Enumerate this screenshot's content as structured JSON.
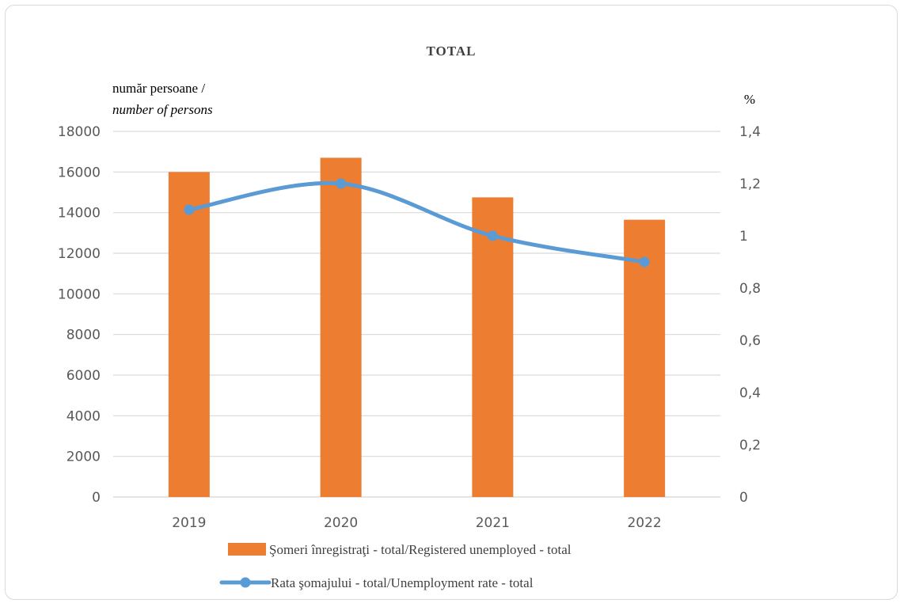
{
  "chart_data": {
    "type": "bar+line",
    "title": "TOTAL",
    "ylabel_left_line1": "număr persoane /",
    "ylabel_left_line2": "number of persons",
    "ylabel_right": "%",
    "categories": [
      "2019",
      "2020",
      "2021",
      "2022"
    ],
    "y_left_lim": [
      0,
      18000
    ],
    "y_left_ticks": [
      "0",
      "2000",
      "4000",
      "6000",
      "8000",
      "10000",
      "12000",
      "14000",
      "16000",
      "18000"
    ],
    "y_right_lim": [
      0,
      1.4
    ],
    "y_right_ticks": [
      "0",
      "0,2",
      "0,4",
      "0,6",
      "0,8",
      "1",
      "1,2",
      "1,4"
    ],
    "grid": true,
    "legend_placement": "bottom",
    "series": [
      {
        "name": "Şomeri înregistraţi - total/Registered unemployed - total",
        "kind": "bar",
        "axis": "left",
        "color": "#ed7d31",
        "values": [
          16000,
          16700,
          14750,
          13650
        ]
      },
      {
        "name": "Rata şomajului - total/Unemployment rate - total",
        "kind": "line",
        "axis": "right",
        "color": "#5b9bd5",
        "values": [
          1.1,
          1.2,
          1.0,
          0.9
        ]
      }
    ]
  }
}
